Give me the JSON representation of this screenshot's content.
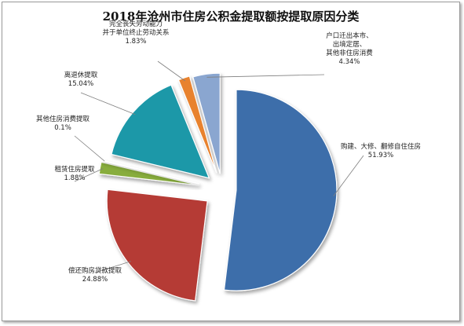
{
  "chart_data": {
    "type": "pie",
    "title": "2018年沧州市住房公积金提取额按提取原因分类",
    "exploded": true,
    "slices": [
      {
        "name": "购建、大修、翻修自住住房",
        "percent": "51.93%",
        "value": 51.93,
        "color": "#3d6eaa"
      },
      {
        "name": "偿还购房贷款提取",
        "percent": "24.88%",
        "value": 24.88,
        "color": "#b53a36"
      },
      {
        "name": "租赁住房提取",
        "percent": "1.88%",
        "value": 1.88,
        "color": "#88ad3e"
      },
      {
        "name": "其他住房消费提取",
        "percent": "0.1%",
        "value": 0.1,
        "color": "#6b4a8f"
      },
      {
        "name": "离退休提取",
        "percent": "15.04%",
        "value": 15.04,
        "color": "#1b98a8"
      },
      {
        "name": "完全丧失劳动能力\n并于单位终止劳动关系",
        "percent": "1.83%",
        "value": 1.83,
        "color": "#e8822e"
      },
      {
        "name": "户口迁出本市、\n出境定居、\n其他非住房消费",
        "percent": "4.34%",
        "value": 4.34,
        "color": "#8aa6d0"
      }
    ]
  }
}
